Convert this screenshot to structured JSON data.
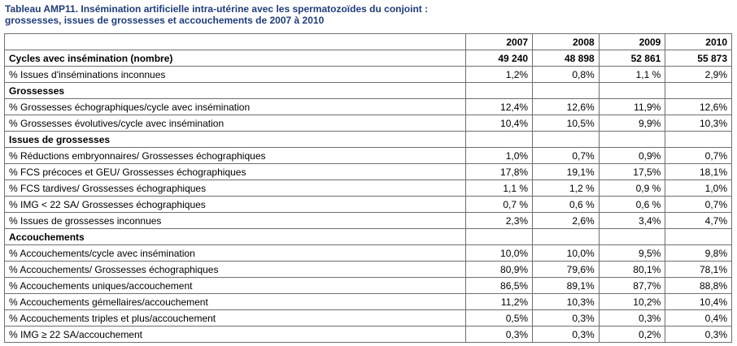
{
  "title_line1": "Tableau AMP11. Insémination artificielle intra-utérine avec les spermatozoïdes du conjoint :",
  "title_line2": "grossesses, issues de grossesses et accouchements de 2007 à 2010",
  "years": [
    "2007",
    "2008",
    "2009",
    "2010"
  ],
  "rows": [
    {
      "label": "Cycles avec insémination (nombre)",
      "values": [
        "49 240",
        "48 898",
        "52 861",
        "55 873"
      ],
      "kind": "bold"
    },
    {
      "label": "% Issues d'inséminations inconnues",
      "values": [
        "1,2%",
        "0,8%",
        "1,1 %",
        "2,9%"
      ],
      "kind": "data"
    },
    {
      "label": "Grossesses",
      "values": [
        "",
        "",
        "",
        ""
      ],
      "kind": "section"
    },
    {
      "label": "% Grossesses échographiques/cycle avec insémination",
      "values": [
        "12,4%",
        "12,6%",
        "11,9%",
        "12,6%"
      ],
      "kind": "data"
    },
    {
      "label": "% Grossesses évolutives/cycle avec insémination",
      "values": [
        "10,4%",
        "10,5%",
        "9,9%",
        "10,3%"
      ],
      "kind": "data"
    },
    {
      "label": "Issues de grossesses",
      "values": [
        "",
        "",
        "",
        ""
      ],
      "kind": "section"
    },
    {
      "label": "% Réductions embryonnaires/ Grossesses échographiques",
      "values": [
        "1,0%",
        "0,7%",
        "0,9%",
        "0,7%"
      ],
      "kind": "data"
    },
    {
      "label": "% FCS précoces et GEU/ Grossesses échographiques",
      "values": [
        "17,8%",
        "19,1%",
        "17,5%",
        "18,1%"
      ],
      "kind": "data"
    },
    {
      "label": "% FCS tardives/ Grossesses échographiques",
      "values": [
        "1,1 %",
        "1,2 %",
        "0,9 %",
        "1,0%"
      ],
      "kind": "data"
    },
    {
      "label": "% IMG < 22 SA/ Grossesses échographiques",
      "values": [
        "0,7 %",
        "0,6 %",
        "0,6 %",
        "0,7%"
      ],
      "kind": "data"
    },
    {
      "label": "% Issues de grossesses inconnues",
      "values": [
        "2,3%",
        "2,6%",
        "3,4%",
        "4,7%"
      ],
      "kind": "data"
    },
    {
      "label": "Accouchements",
      "values": [
        "",
        "",
        "",
        ""
      ],
      "kind": "section"
    },
    {
      "label": "% Accouchements/cycle avec insémination",
      "values": [
        "10,0%",
        "10,0%",
        "9,5%",
        "9,8%"
      ],
      "kind": "data"
    },
    {
      "label": "% Accouchements/ Grossesses échographiques",
      "values": [
        "80,9%",
        "79,6%",
        "80,1%",
        "78,1%"
      ],
      "kind": "data"
    },
    {
      "label": "% Accouchements uniques/accouchement",
      "values": [
        "86,5%",
        "89,1%",
        "87,7%",
        "88,8%"
      ],
      "kind": "data"
    },
    {
      "label": "% Accouchements gémellaires/accouchement",
      "values": [
        "11,2%",
        "10,3%",
        "10,2%",
        "10,4%"
      ],
      "kind": "data"
    },
    {
      "label": "% Accouchements triples et plus/accouchement",
      "values": [
        "0,5%",
        "0,3%",
        "0,3%",
        "0,4%"
      ],
      "kind": "data"
    },
    {
      "label": "% IMG ≥ 22 SA/accouchement",
      "values": [
        "0,3%",
        "0,3%",
        "0,2%",
        "0,3%"
      ],
      "kind": "data"
    }
  ]
}
